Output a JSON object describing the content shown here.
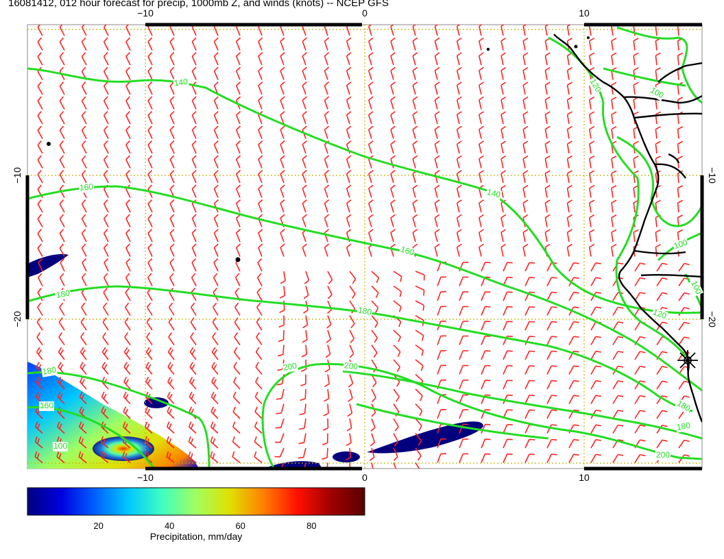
{
  "title": "16081412, 012 hour forecast for precip, 1000mb Z, and winds (knots) -- NCEP GFS",
  "map": {
    "lon_ticks": [
      {
        "lon": -10,
        "label": "−10"
      },
      {
        "lon": 0,
        "label": "0"
      },
      {
        "lon": 10,
        "label": "10"
      }
    ],
    "lat_ticks": [
      {
        "lat": -10,
        "label": "−10"
      },
      {
        "lat": -20,
        "label": "−20"
      }
    ],
    "contour_color": "#22dd22",
    "wind_color": "#ff2020",
    "grid_color": "#c8b400",
    "contour_labels": [
      {
        "text": "140"
      },
      {
        "text": "120"
      },
      {
        "text": "100"
      },
      {
        "text": "160"
      },
      {
        "text": "140"
      },
      {
        "text": "160"
      },
      {
        "text": "100"
      },
      {
        "text": "100"
      },
      {
        "text": "180"
      },
      {
        "text": "180"
      },
      {
        "text": "120"
      },
      {
        "text": "180"
      },
      {
        "text": "200"
      },
      {
        "text": "200"
      },
      {
        "text": "160"
      },
      {
        "text": "180"
      },
      {
        "text": "180"
      },
      {
        "text": "200"
      },
      {
        "text": "100"
      }
    ]
  },
  "colorbar": {
    "label": "Precipitation, mm/day",
    "min": 0,
    "max": 95,
    "ticks": [
      {
        "value": 20,
        "label": "20"
      },
      {
        "value": 40,
        "label": "40"
      },
      {
        "value": 60,
        "label": "60"
      },
      {
        "value": 80,
        "label": "80"
      }
    ],
    "colors": [
      "#00007f",
      "#0000e0",
      "#0060ff",
      "#00c8ff",
      "#40ffc0",
      "#a0ff60",
      "#e0e000",
      "#ff8000",
      "#ff1000",
      "#a00000",
      "#5a0000"
    ]
  }
}
